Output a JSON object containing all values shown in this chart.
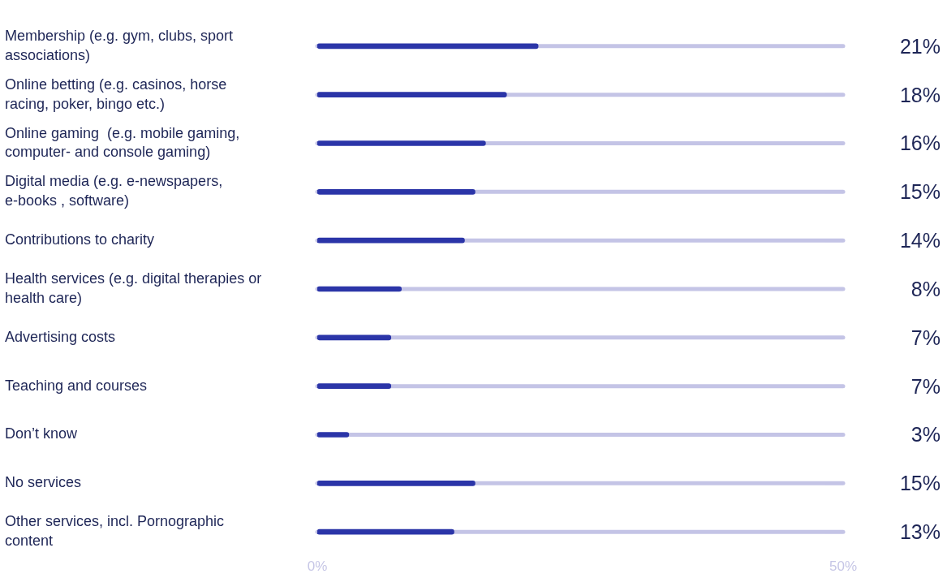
{
  "chart_data": {
    "type": "bar",
    "orientation": "horizontal",
    "categories": [
      "Membership (e.g. gym, clubs, sport associations)",
      "Online betting (e.g. casinos, horse racing, poker, bingo etc.)",
      "Online gaming  (e.g. mobile gaming, computer- and console gaming)",
      "Digital media (e.g. e-newspapers, e-books , software)",
      "Contributions to charity",
      "Health services (e.g. digital therapies or health care)",
      "Advertising costs",
      "Teaching and courses",
      "Don’t know",
      "No services",
      "Other services, incl. Pornographic content"
    ],
    "values": [
      21,
      18,
      16,
      15,
      14,
      8,
      7,
      7,
      3,
      15,
      13
    ],
    "value_labels": [
      "21%",
      "18%",
      "16%",
      "15%",
      "14%",
      "8%",
      "7%",
      "7%",
      "3%",
      "15%",
      "13%"
    ],
    "color": "#2b35a8",
    "xlim": [
      0,
      50
    ],
    "xticks": [
      {
        "value": 0,
        "label": "0%"
      },
      {
        "value": 50,
        "label": "50%"
      }
    ],
    "grid": false,
    "legend": false
  }
}
